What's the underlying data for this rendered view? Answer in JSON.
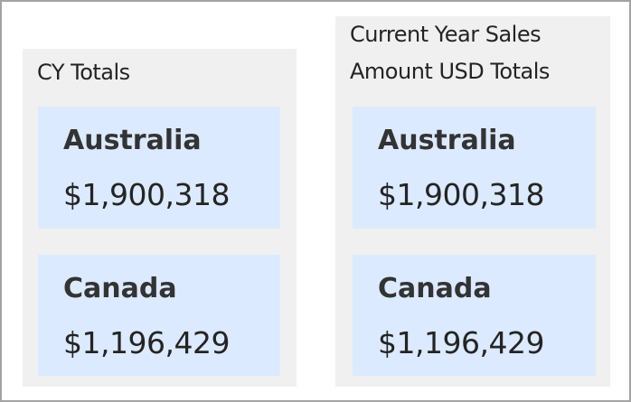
{
  "panels": [
    {
      "title": "CY Totals",
      "cards": [
        {
          "country": "Australia",
          "amount": "$1,900,318"
        },
        {
          "country": "Canada",
          "amount": "$1,196,429"
        }
      ]
    },
    {
      "title_lines": [
        "Current Year Sales",
        "Amount USD Totals"
      ],
      "cards": [
        {
          "country": "Australia",
          "amount": "$1,900,318"
        },
        {
          "country": "Canada",
          "amount": "$1,196,429"
        }
      ]
    }
  ],
  "colors": {
    "panel_bg": "#f0f0f0",
    "card_bg": "#dbeafe",
    "border": "#a3a3a3"
  }
}
